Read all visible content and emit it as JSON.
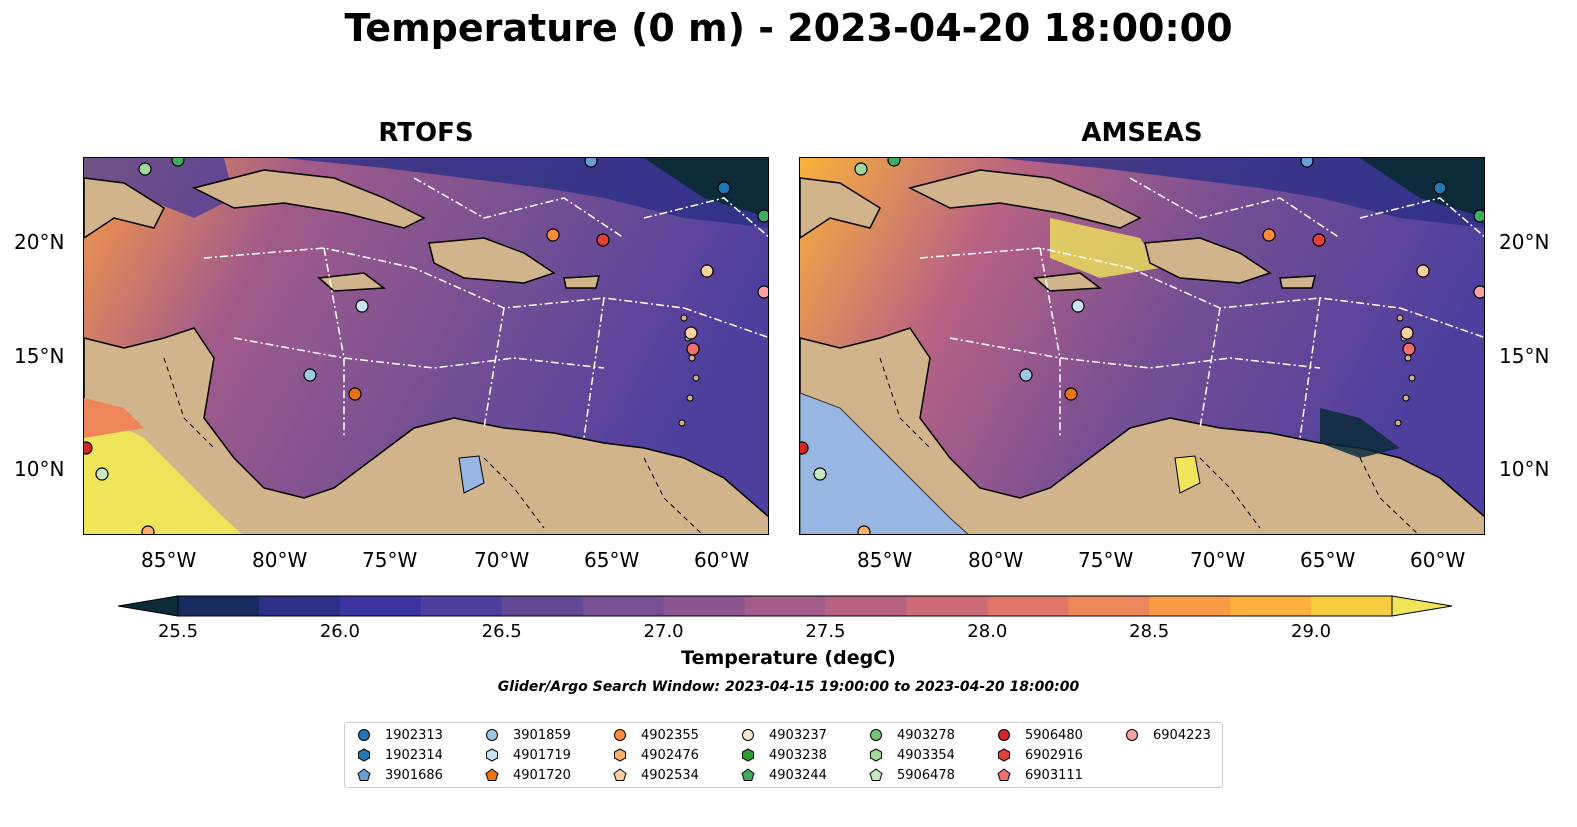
{
  "title": "Temperature (0 m) - 2023-04-20 18:00:00",
  "panels": [
    {
      "title": "RTOFS"
    },
    {
      "title": "AMSEAS"
    }
  ],
  "lat_labels": [
    "20°N",
    "15°N",
    "10°N"
  ],
  "lon_labels": [
    "85°W",
    "80°W",
    "75°W",
    "70°W",
    "65°W",
    "60°W"
  ],
  "colorbar": {
    "label": "Temperature (degC)",
    "ticks": [
      "25.5",
      "26.0",
      "26.5",
      "27.0",
      "27.5",
      "28.0",
      "28.5",
      "29.0"
    ],
    "min": 25.5,
    "max": 29.25,
    "colors": [
      "#0b2a3a",
      "#172b60",
      "#2b2f86",
      "#3b34a0",
      "#4e3f9f",
      "#634896",
      "#774f93",
      "#8c5590",
      "#a25b8a",
      "#b86283",
      "#cd6a78",
      "#e0756a",
      "#ef8659",
      "#f99b46",
      "#fbb13c",
      "#f8cb40",
      "#efe55a"
    ]
  },
  "search_window": "Glider/Argo Search Window: 2023-04-15 19:00:00 to 2023-04-20 18:00:00",
  "legend": [
    {
      "id": "1902313",
      "marker": "circle",
      "color": "#1f77b4"
    },
    {
      "id": "1902314",
      "marker": "hexagon",
      "color": "#1f77b4"
    },
    {
      "id": "3901686",
      "marker": "pentagon",
      "color": "#6a9fd6"
    },
    {
      "id": "3901859",
      "marker": "circle",
      "color": "#9ecae1"
    },
    {
      "id": "4901719",
      "marker": "hexagon",
      "color": "#c6e4f4"
    },
    {
      "id": "4901720",
      "marker": "pentagon",
      "color": "#e6750f"
    },
    {
      "id": "4902355",
      "marker": "circle",
      "color": "#fd8d3c"
    },
    {
      "id": "4902476",
      "marker": "hexagon",
      "color": "#fdae6b"
    },
    {
      "id": "4902534",
      "marker": "pentagon",
      "color": "#fdd0a2"
    },
    {
      "id": "4903237",
      "marker": "circle",
      "color": "#fde5d0"
    },
    {
      "id": "4903238",
      "marker": "hexagon",
      "color": "#2ca02c"
    },
    {
      "id": "4903244",
      "marker": "pentagon",
      "color": "#41ab5d"
    },
    {
      "id": "4903278",
      "marker": "circle",
      "color": "#74c476"
    },
    {
      "id": "4903354",
      "marker": "hexagon",
      "color": "#a1d99b"
    },
    {
      "id": "5906478",
      "marker": "pentagon",
      "color": "#c7e9c0"
    },
    {
      "id": "5906480",
      "marker": "circle",
      "color": "#d62728"
    },
    {
      "id": "6902916",
      "marker": "hexagon",
      "color": "#e2403a"
    },
    {
      "id": "6903111",
      "marker": "pentagon",
      "color": "#f07070"
    },
    {
      "id": "6904223",
      "marker": "circle",
      "color": "#f7a1a1"
    }
  ],
  "colors": {
    "land": "#d2b48c",
    "pacific_amseas": "#97b6e1"
  }
}
